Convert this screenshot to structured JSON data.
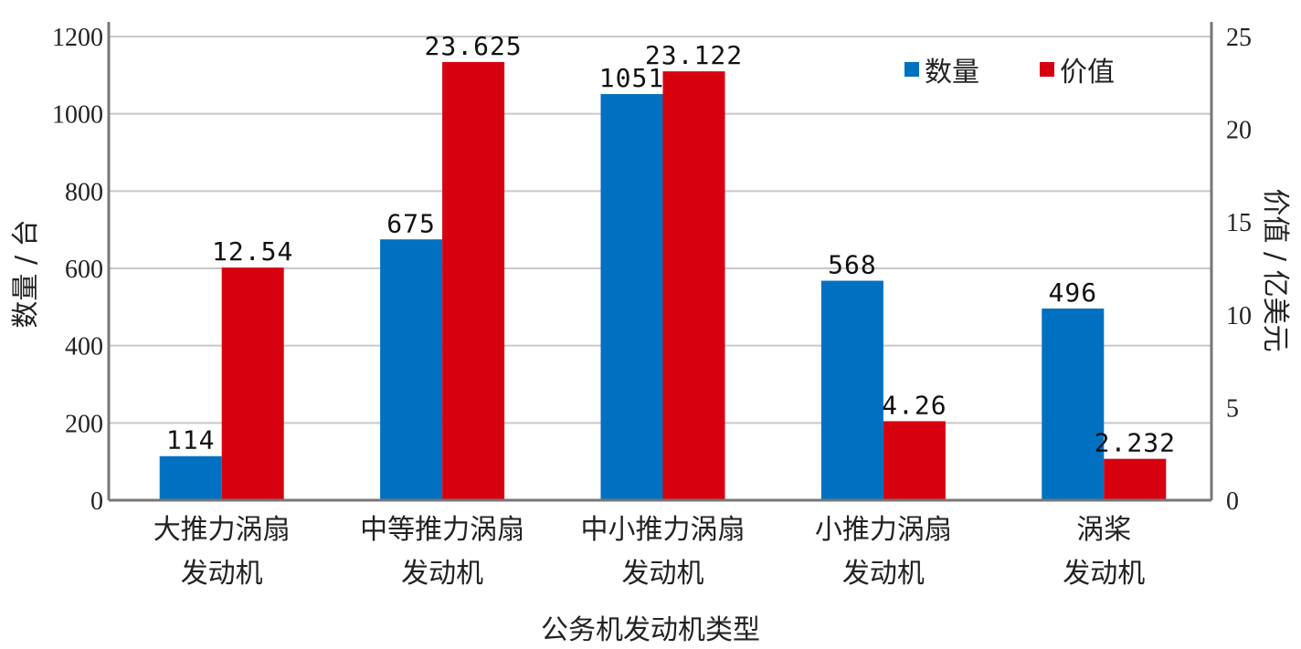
{
  "chart_data": {
    "type": "bar",
    "xlabel": "公务机发动机类型",
    "ylabel": "数量 / 台",
    "y2label": "价值 / 亿美元",
    "categories": [
      [
        "大推力涡扇",
        "发动机"
      ],
      [
        "中等推力涡扇",
        "发动机"
      ],
      [
        "中小推力涡扇",
        "发动机"
      ],
      [
        "小推力涡扇",
        "发动机"
      ],
      [
        "涡桨",
        "发动机"
      ]
    ],
    "series": [
      {
        "name": "数量",
        "axis": "left",
        "color": "#0070c0",
        "values": [
          114,
          675,
          1051,
          568,
          496
        ],
        "labels": [
          "114",
          "675",
          "1051",
          "568",
          "496"
        ]
      },
      {
        "name": "价值",
        "axis": "right",
        "color": "#d7000f",
        "values": [
          12.54,
          23.625,
          23.122,
          4.26,
          2.232
        ],
        "labels": [
          "12.54",
          "23.625",
          "23.122",
          "4.26",
          "2.232"
        ]
      }
    ],
    "ylim": [
      0,
      1200
    ],
    "yticks": [
      "0",
      "200",
      "400",
      "600",
      "800",
      "1000",
      "1200"
    ],
    "y2lim": [
      0,
      25
    ],
    "y2ticks": [
      "0",
      "5",
      "10",
      "15",
      "20",
      "25"
    ],
    "grid": true,
    "legend": "top-right"
  }
}
